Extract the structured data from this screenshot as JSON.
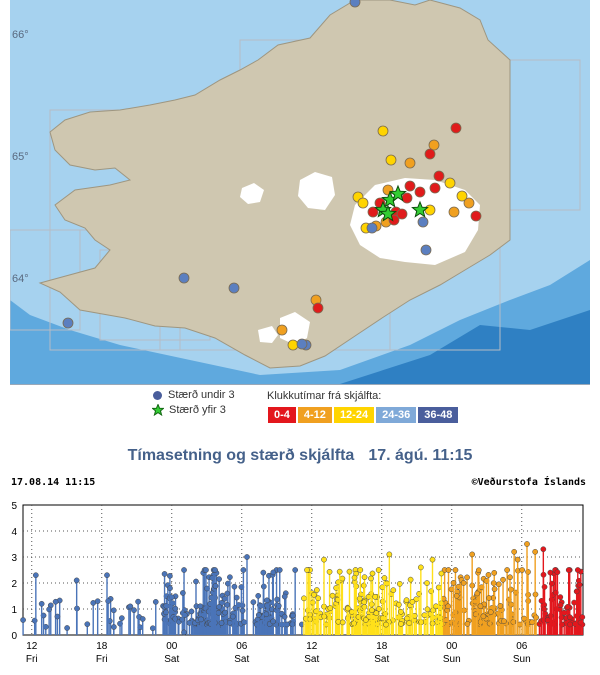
{
  "map": {
    "latitude_labels": [
      "66°",
      "65°",
      "64°"
    ],
    "colors": {
      "deep_sea": "#2f80c3",
      "mid_sea": "#5fa9de",
      "shallow_sea": "#a6d2ef",
      "land": "#cfc7b0",
      "ice": "#ffffff",
      "grid": "#b5bcc6"
    },
    "symbols": [
      {
        "kind": "dot",
        "color": "#5b7fc0"
      },
      {
        "kind": "dot",
        "color": "#f0a020"
      },
      {
        "kind": "dot",
        "color": "#ffd400"
      },
      {
        "kind": "dot",
        "color": "#e01b1b"
      },
      {
        "kind": "dot",
        "color": "#e01b1b"
      },
      {
        "kind": "dot",
        "color": "#ffd400"
      },
      {
        "kind": "dot",
        "color": "#f0a020"
      },
      {
        "kind": "dot",
        "color": "#e01b1b"
      },
      {
        "kind": "dot",
        "color": "#ffd400"
      },
      {
        "kind": "dot",
        "color": "#e01b1b"
      },
      {
        "kind": "dot",
        "color": "#f0a020"
      },
      {
        "kind": "dot",
        "color": "#ffd400"
      },
      {
        "kind": "dot",
        "color": "#e01b1b"
      },
      {
        "kind": "dot",
        "color": "#e01b1b"
      },
      {
        "kind": "dot",
        "color": "#ffd400"
      },
      {
        "kind": "dot",
        "color": "#e01b1b"
      },
      {
        "kind": "dot",
        "color": "#f0a020"
      },
      {
        "kind": "dot",
        "color": "#ffd400"
      },
      {
        "kind": "dot",
        "color": "#e01b1b"
      },
      {
        "kind": "dot",
        "color": "#e01b1b"
      },
      {
        "kind": "dot",
        "color": "#f0a020"
      },
      {
        "kind": "dot",
        "color": "#ffd400"
      },
      {
        "kind": "dot",
        "color": "#e01b1b"
      },
      {
        "kind": "dot",
        "color": "#5b7fc0"
      },
      {
        "kind": "dot",
        "color": "#f0a020"
      },
      {
        "kind": "dot",
        "color": "#e01b1b"
      },
      {
        "kind": "dot",
        "color": "#ffd400"
      },
      {
        "kind": "dot",
        "color": "#e01b1b"
      },
      {
        "kind": "dot",
        "color": "#e01b1b"
      },
      {
        "kind": "dot",
        "color": "#f0a020"
      },
      {
        "kind": "dot",
        "color": "#5b7fc0"
      },
      {
        "kind": "dot",
        "color": "#5b7fc0"
      },
      {
        "kind": "dot",
        "color": "#5b7fc0"
      },
      {
        "kind": "dot",
        "color": "#5b7fc0"
      },
      {
        "kind": "dot",
        "color": "#5b7fc0"
      },
      {
        "kind": "dot",
        "color": "#5b7fc0"
      },
      {
        "kind": "dot",
        "color": "#f0a020"
      },
      {
        "kind": "dot",
        "color": "#e01b1b"
      },
      {
        "kind": "dot",
        "color": "#f0a020"
      },
      {
        "kind": "dot",
        "color": "#ffd400"
      },
      {
        "kind": "dot",
        "color": "#5b7fc0"
      },
      {
        "kind": "star",
        "color": "#33cc33"
      },
      {
        "kind": "star",
        "color": "#33cc33"
      },
      {
        "kind": "star",
        "color": "#33cc33"
      },
      {
        "kind": "star",
        "color": "#33cc33"
      },
      {
        "kind": "star",
        "color": "#33cc33"
      }
    ]
  },
  "legend": {
    "magnitude_below": "Stærð undir 3",
    "magnitude_above": "Stærð yfir 3",
    "dot_color": "#4a5e9c",
    "star_color": "#33cc33",
    "hours_title": "Klukkutímar frá skjálfta:",
    "hour_bins": [
      {
        "label": "0-4",
        "color": "#e3171d"
      },
      {
        "label": "4-12",
        "color": "#f0a020"
      },
      {
        "label": "12-24",
        "color": "#ffd400"
      },
      {
        "label": "24-36",
        "color": "#7fa9d8"
      },
      {
        "label": "36-48",
        "color": "#4a5e9c"
      }
    ]
  },
  "timeline": {
    "title": "Tímasetning og stærð skjálfta",
    "date": "17. ágú. 11:15",
    "stamp": "17.08.14 11:15",
    "credit": "©Veðurstofa Íslands"
  },
  "chart_data": {
    "type": "scatter",
    "title": "Tímasetning og stærð skjálfta",
    "ylim": [
      0,
      5
    ],
    "y_ticks": [
      "0",
      "1",
      "2",
      "3",
      "4",
      "5"
    ],
    "x_ticks": [
      {
        "hour": "12",
        "day": "Fri"
      },
      {
        "hour": "18",
        "day": "Fri"
      },
      {
        "hour": "00",
        "day": "Sat"
      },
      {
        "hour": "06",
        "day": "Sat"
      },
      {
        "hour": "12",
        "day": "Sat"
      },
      {
        "hour": "18",
        "day": "Sat"
      },
      {
        "hour": "00",
        "day": "Sun"
      },
      {
        "hour": "06",
        "day": "Sun"
      }
    ],
    "x_unit": "hours before 17.08.14 11:15",
    "xlim": [
      -48,
      0
    ],
    "series_colors": {
      "36-48": "#4a74b8",
      "24-36": "#4a74b8",
      "12-24": "#ffe01a",
      "4-12": "#f0a020",
      "0-4": "#e3171d"
    },
    "notable_events_hours_ago": [
      -46.9,
      -46.4,
      -43.4,
      -41.6,
      -40.8,
      -38.8,
      -35.4,
      -34.2,
      -28.8,
      -27.4,
      -22.2,
      -16.6,
      -13.9,
      -12.9,
      -9.5,
      -5.9,
      -5.6,
      -4.8,
      -4.1,
      -3.4,
      -2.8
    ],
    "notable_events_magnitude": [
      2.3,
      1.2,
      2.1,
      1.3,
      2.3,
      1.1,
      1.8,
      0.1,
      3.0,
      2.4,
      2.9,
      3.1,
      2.6,
      2.9,
      3.1,
      3.2,
      2.9,
      3.5,
      3.2,
      3.3,
      2.4
    ]
  }
}
